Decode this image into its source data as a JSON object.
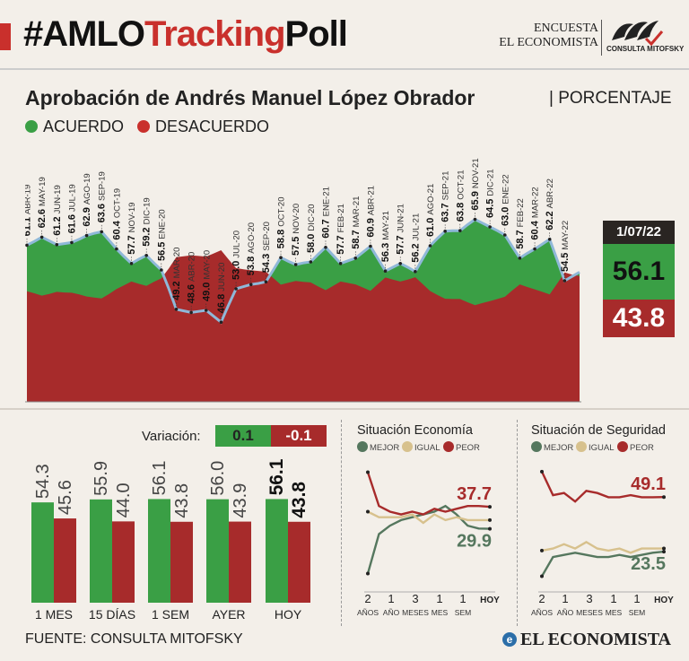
{
  "header": {
    "hashtag_a": "#AMLO",
    "hashtag_b": "Tracking",
    "hashtag_c": "Poll",
    "encuesta": "ENCUESTA",
    "publisher": "EL ECONOMISTA",
    "partner": "CONSULTA MITOFSKY"
  },
  "title": "Aprobación de Andrés Manuel López Obrador",
  "subtitle": "| PORCENTAJE",
  "legend": {
    "acuerdo": "ACUERDO",
    "desacuerdo": "DESACUERDO"
  },
  "colors": {
    "green": "#3a9f45",
    "red": "#a72b2b",
    "line": "#8fb8d8",
    "mejor": "#55775e",
    "igual": "#d7c18d",
    "peor": "#a72b2b"
  },
  "latest": {
    "date": "1/07/22",
    "acuerdo": "56.1",
    "desacuerdo": "43.8"
  },
  "variation": {
    "label": "Variación:",
    "acuerdo": "0.1",
    "desacuerdo": "-0.1"
  },
  "footer": {
    "source": "FUENTE: CONSULTA MITOFSKY",
    "brand": "EL ECONOMISTA",
    "brand_initial": "e"
  },
  "chart_data": [
    {
      "type": "line",
      "name": "approval-tracking",
      "y_range": [
        30,
        70
      ],
      "labels": [
        {
          "value": "61.1",
          "date": "ABR-19"
        },
        {
          "value": "62.6",
          "date": "MAY-19"
        },
        {
          "value": "61.2",
          "date": "JUN-19"
        },
        {
          "value": "61.6",
          "date": "JUL-19"
        },
        {
          "value": "62.9",
          "date": "AGO-19"
        },
        {
          "value": "63.6",
          "date": "SEP-19"
        },
        {
          "value": "60.4",
          "date": "OCT-19"
        },
        {
          "value": "57.7",
          "date": "NOV-19"
        },
        {
          "value": "59.2",
          "date": "DIC-19"
        },
        {
          "value": "56.5",
          "date": "ENE-20"
        },
        {
          "value": "49.2",
          "date": "MAR-20"
        },
        {
          "value": "48.6",
          "date": "ABR-20"
        },
        {
          "value": "49.0",
          "date": "MAY-20"
        },
        {
          "value": "46.8",
          "date": "JUN-20"
        },
        {
          "value": "53.0",
          "date": "JUL-20"
        },
        {
          "value": "53.8",
          "date": "AGO-20"
        },
        {
          "value": "54.3",
          "date": "SEP-20"
        },
        {
          "value": "58.8",
          "date": "OCT-20"
        },
        {
          "value": "57.5",
          "date": "NOV-20"
        },
        {
          "value": "58.0",
          "date": "DIC-20"
        },
        {
          "value": "60.7",
          "date": "ENE-21"
        },
        {
          "value": "57.7",
          "date": "FEB-21"
        },
        {
          "value": "58.7",
          "date": "MAR-21"
        },
        {
          "value": "60.9",
          "date": "ABR-21"
        },
        {
          "value": "56.3",
          "date": "MAY-21"
        },
        {
          "value": "57.7",
          "date": "JUN-21"
        },
        {
          "value": "56.2",
          "date": "JUL-21"
        },
        {
          "value": "61.0",
          "date": "AGO-21"
        },
        {
          "value": "63.7",
          "date": "SEP-21"
        },
        {
          "value": "63.8",
          "date": "OCT-21"
        },
        {
          "value": "65.9",
          "date": "NOV-21"
        },
        {
          "value": "64.5",
          "date": "DIC-21"
        },
        {
          "value": "63.0",
          "date": "ENE-22"
        },
        {
          "value": "58.7",
          "date": "FEB-22"
        },
        {
          "value": "60.4",
          "date": "MAR-22"
        },
        {
          "value": "62.2",
          "date": "ABR-22"
        },
        {
          "value": "54.5",
          "date": "MAY-22"
        }
      ],
      "acuerdo_series": [
        61.1,
        61.8,
        62.6,
        61.9,
        61.2,
        61.4,
        61.6,
        62.2,
        62.9,
        63.3,
        63.6,
        62.0,
        60.4,
        59.0,
        57.7,
        58.5,
        59.2,
        57.8,
        56.5,
        53.0,
        49.2,
        48.9,
        48.6,
        48.8,
        49.0,
        47.9,
        46.8,
        50.0,
        53.0,
        53.4,
        53.8,
        54.0,
        54.3,
        56.5,
        58.8,
        58.1,
        57.5,
        57.8,
        58.0,
        59.4,
        60.7,
        59.2,
        57.7,
        58.2,
        58.7,
        59.8,
        60.9,
        58.6,
        56.3,
        57.0,
        57.7,
        57.0,
        56.2,
        58.6,
        61.0,
        62.4,
        63.7,
        63.8,
        63.8,
        64.9,
        65.9,
        65.2,
        64.5,
        63.8,
        63.0,
        60.8,
        58.7,
        59.6,
        60.4,
        61.3,
        62.2,
        58.4,
        54.5,
        55.3,
        56.1
      ],
      "desacuerdo_series": [
        38.5,
        37.8,
        37.0,
        37.6,
        38.3,
        38.1,
        38.0,
        37.4,
        36.7,
        36.3,
        36.0,
        37.6,
        39.3,
        40.6,
        41.9,
        41.1,
        40.4,
        41.8,
        43.0,
        46.5,
        50.4,
        50.7,
        51.0,
        50.8,
        50.6,
        51.7,
        52.8,
        49.6,
        46.6,
        46.2,
        45.8,
        45.6,
        45.3,
        43.1,
        40.8,
        41.5,
        42.1,
        41.8,
        41.6,
        40.2,
        38.9,
        40.4,
        41.9,
        41.4,
        40.9,
        39.8,
        38.7,
        41.0,
        43.3,
        42.6,
        41.9,
        42.6,
        43.4,
        41.0,
        38.6,
        37.2,
        35.9,
        35.8,
        35.8,
        34.7,
        33.7,
        34.4,
        35.1,
        35.8,
        36.6,
        38.8,
        40.9,
        40.0,
        39.2,
        38.3,
        37.4,
        41.2,
        45.1,
        44.3,
        43.8
      ]
    },
    {
      "type": "bar",
      "name": "period-comparison",
      "categories": [
        "1 MES",
        "15 DÍAS",
        "1 SEM",
        "AYER",
        "HOY"
      ],
      "series": [
        {
          "values": [
            54.3,
            55.9,
            56.1,
            56.0,
            56.1
          ]
        },
        {
          "values": [
            45.6,
            44.0,
            43.8,
            43.9,
            43.8
          ]
        }
      ],
      "y_range": [
        0,
        70
      ]
    },
    {
      "type": "line",
      "name": "economy",
      "title": "Situación Economía",
      "legend": [
        "MEJOR",
        "IGUAL",
        "PEOR"
      ],
      "ticks": [
        {
          "n": "2",
          "u": "AÑOS"
        },
        {
          "n": "1",
          "u": "AÑO"
        },
        {
          "n": "3",
          "u": "MESES"
        },
        {
          "n": "1",
          "u": "MES"
        },
        {
          "n": "1",
          "u": "SEM"
        },
        {
          "n": "HOY",
          "u": ""
        }
      ],
      "x": [
        0,
        1,
        2,
        3,
        4,
        5,
        6,
        7,
        8,
        9,
        10,
        11
      ],
      "series": [
        {
          "name": "MEJOR",
          "values": [
            14,
            28,
            31,
            33,
            34,
            35,
            36,
            38,
            35,
            31,
            30,
            29.9
          ]
        },
        {
          "name": "IGUAL",
          "values": [
            36,
            34,
            34,
            34,
            35,
            32,
            35,
            33,
            34,
            33,
            33,
            33
          ]
        },
        {
          "name": "PEOR",
          "values": [
            50,
            38,
            36,
            35,
            36,
            35,
            37,
            36,
            37,
            38,
            38,
            37.7
          ]
        }
      ],
      "labels": {
        "top": "37.7",
        "bottom": "29.9"
      },
      "y_range": [
        10,
        54
      ]
    },
    {
      "type": "line",
      "name": "security",
      "title": "Situación de Seguridad",
      "legend": [
        "MEJOR",
        "IGUAL",
        "PEOR"
      ],
      "ticks": [
        {
          "n": "2",
          "u": "AÑOS"
        },
        {
          "n": "1",
          "u": "AÑO"
        },
        {
          "n": "3",
          "u": "MESES"
        },
        {
          "n": "1",
          "u": "MES"
        },
        {
          "n": "1",
          "u": "SEM"
        },
        {
          "n": "HOY",
          "u": ""
        }
      ],
      "x": [
        0,
        1,
        2,
        3,
        4,
        5,
        6,
        7,
        8,
        9,
        10,
        11
      ],
      "series": [
        {
          "name": "MEJOR",
          "values": [
            12,
            21,
            22,
            23,
            22,
            21,
            21,
            22,
            21,
            22,
            23,
            23.5
          ]
        },
        {
          "name": "IGUAL",
          "values": [
            24,
            25,
            27,
            25,
            28,
            25,
            24,
            25,
            23,
            25,
            25,
            25
          ]
        },
        {
          "name": "PEOR",
          "values": [
            61,
            50,
            51,
            47,
            52,
            51,
            49,
            49,
            50,
            49,
            49,
            49.1
          ]
        }
      ],
      "labels": {
        "top": "49.1",
        "bottom": "23.5"
      },
      "y_range": [
        8,
        66
      ]
    }
  ]
}
